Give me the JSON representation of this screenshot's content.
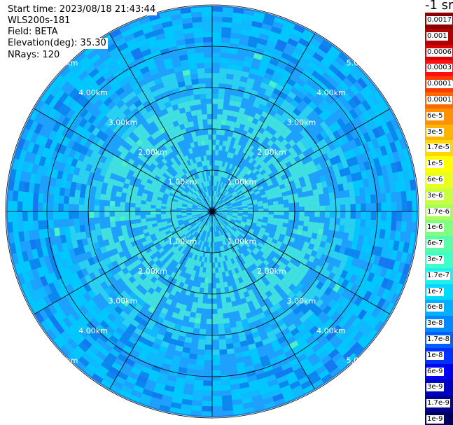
{
  "header": {
    "start_time": "Start time: 2023/08/18 21:43:44",
    "instrument": "WLS200s-181",
    "field": "Field: BETA",
    "elevation": "Elevation(deg): 35.30",
    "nrays": "NRays: 120"
  },
  "colorbar": {
    "unit": "-1 sr",
    "entries": [
      {
        "label": "0.0017",
        "color": "#8b0000"
      },
      {
        "label": "0.001",
        "color": "#b00000"
      },
      {
        "label": "0.0006",
        "color": "#d80000"
      },
      {
        "label": "0.0003",
        "color": "#ff1010"
      },
      {
        "label": "0.00017",
        "color": "#ff3c00"
      },
      {
        "label": "0.0001",
        "color": "#ff6a00"
      },
      {
        "label": "6e-5",
        "color": "#ff9000"
      },
      {
        "label": "3e-5",
        "color": "#ffb400"
      },
      {
        "label": "1.7e-5",
        "color": "#ffd800"
      },
      {
        "label": "1e-5",
        "color": "#ffff00"
      },
      {
        "label": "6e-6",
        "color": "#e8ff20"
      },
      {
        "label": "3e-6",
        "color": "#c8ff40"
      },
      {
        "label": "1.7e-6",
        "color": "#a8ff58"
      },
      {
        "label": "1e-6",
        "color": "#80ff80"
      },
      {
        "label": "6e-7",
        "color": "#58ffa8"
      },
      {
        "label": "3e-7",
        "color": "#40ffc8"
      },
      {
        "label": "1.7e-7",
        "color": "#20f0f0"
      },
      {
        "label": "1e-7",
        "color": "#00d8ff"
      },
      {
        "label": "6e-8",
        "color": "#00b0ff"
      },
      {
        "label": "3e-8",
        "color": "#0088ff"
      },
      {
        "label": "1.7e-8",
        "color": "#0060ff"
      },
      {
        "label": "1e-8",
        "color": "#0030ff"
      },
      {
        "label": "6e-9",
        "color": "#0000f0"
      },
      {
        "label": "3e-9",
        "color": "#0000c0"
      },
      {
        "label": "1.7e-9",
        "color": "#000090"
      },
      {
        "label": "1e-9",
        "color": "#000060"
      }
    ]
  },
  "range_rings": [
    "1.00km",
    "2.00km",
    "3.00km",
    "4.00km",
    "5.00km"
  ],
  "palette": {
    "field_colors": [
      "#1ea0ff",
      "#10b8ff",
      "#00c8ff",
      "#2ad0f0",
      "#40e0e0",
      "#0a88f0",
      "#1478f0",
      "#4cf0c8"
    ],
    "ring_line": "#000000"
  }
}
